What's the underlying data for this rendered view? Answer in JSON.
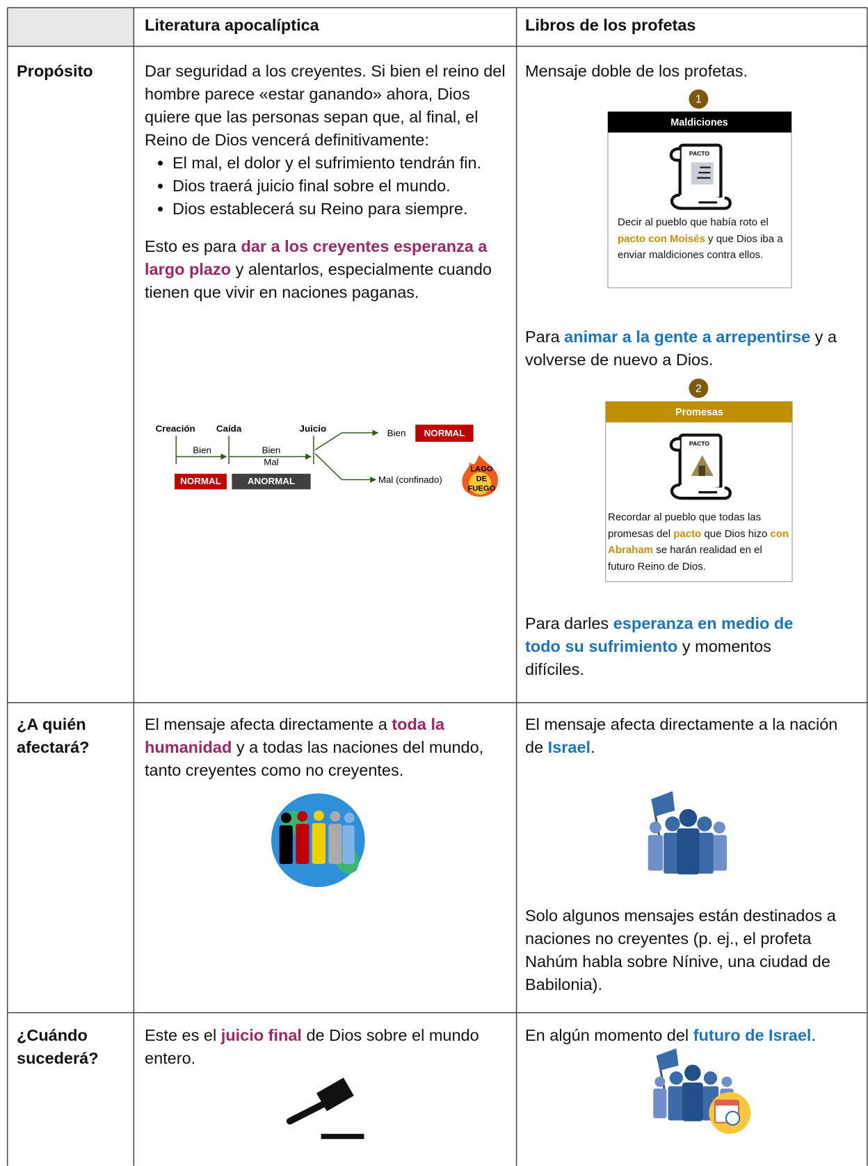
{
  "header": {
    "columns": [
      "Literatura apocalíptica",
      "Libros de los profetas"
    ]
  },
  "rows": [
    {
      "label": "Propósito",
      "apocalyptic": {
        "intro": "Dar seguridad a los creyentes. Si bien el reino del hombre parece «estar ganando» ahora, Dios quiere que las personas sepan que, al final, el Reino de Dios vencerá definitivamente:",
        "bullets": [
          "El mal, el dolor y el sufrimiento tendrán fin.",
          "Dios traerá juicio final sobre el mundo.",
          "Dios establecerá su Reino para siempre."
        ],
        "closing": [
          "Esto es para ",
          "dar a los creyentes esperanza a largo plazo",
          " y alentarlos, especialmente cuando tienen que vivir en naciones paganas."
        ],
        "timeline": {
          "events": [
            "Creación",
            "Caída",
            "Juicio"
          ],
          "spans": [
            [
              "Bien"
            ],
            [
              "Bien",
              "Mal"
            ]
          ],
          "eras": [
            "NORMAL",
            "ANORMAL"
          ],
          "outcomes": [
            {
              "label": "Bien",
              "tag": "NORMAL"
            },
            {
              "label": "Mal (confinado)",
              "tag": [
                "LAGO",
                "DE",
                "FUEGO"
              ]
            }
          ]
        }
      },
      "prophets": {
        "intro": "Mensaje doble de los profetas.",
        "curses": {
          "number": "1",
          "title": "Maldiciones",
          "icon_label": "PACTO",
          "text": [
            "Decir al pueblo que había roto el ",
            "pacto con Moisés",
            " y que Dios iba a enviar maldiciones contra ellos."
          ]
        },
        "repent": [
          "Para ",
          "animar a la gente a arrepentirse",
          " y a volverse de nuevo a Dios."
        ],
        "promises": {
          "number": "2",
          "title": "Promesas",
          "icon_label": "PACTO",
          "text": [
            "Recordar al pueblo que todas las promesas del ",
            "pacto",
            " que Dios hizo ",
            "con Abraham",
            " se harán realidad en el futuro Reino de Dios."
          ]
        },
        "hope": [
          "Para darles ",
          "esperanza en medio de todo su sufrimiento",
          " y momentos difíciles."
        ]
      }
    },
    {
      "label": "¿A quién afectará?",
      "apocalyptic": {
        "text": [
          "El mensaje afecta directamente a ",
          "toda la humanidad",
          " y a todas las naciones del mundo, tanto creyentes como no creyentes."
        ]
      },
      "prophets": {
        "text": [
          "El mensaje afecta directamente a la nación de ",
          "Israel",
          "."
        ],
        "note": "Solo algunos mensajes están destinados a naciones no creyentes (p. ej., el profeta Nahúm habla sobre Nínive, una ciudad de Babilonia)."
      }
    },
    {
      "label": "¿Cuándo sucederá?",
      "apocalyptic": {
        "text": [
          "Este es el ",
          "juicio final",
          " de Dios sobre el mundo entero."
        ]
      },
      "prophets": {
        "text": [
          "En algún momento del ",
          "futuro de Israel",
          "."
        ]
      }
    }
  ]
}
